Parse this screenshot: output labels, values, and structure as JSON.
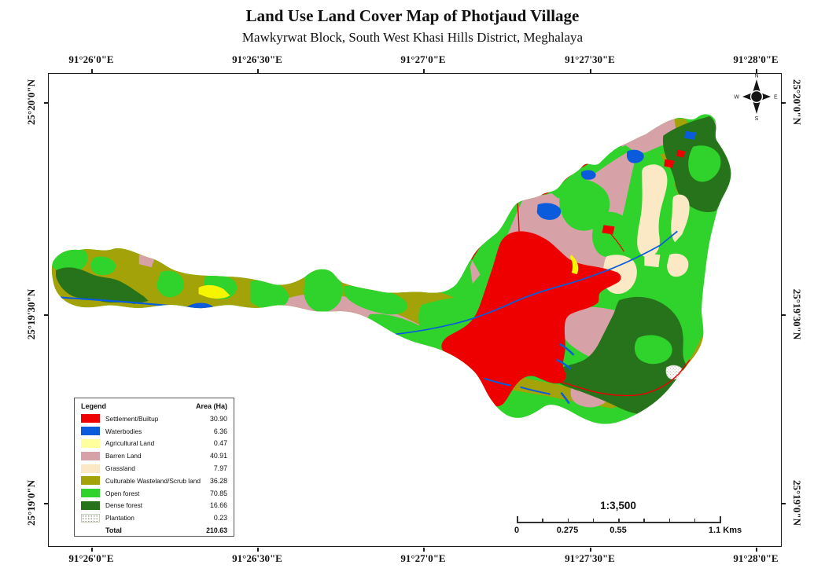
{
  "title": "Land Use Land Cover Map of Photjaud Village",
  "subtitle": "Mawkyrwat Block, South West Khasi Hills District, Meghalaya",
  "axis": {
    "lon_labels": [
      "91°26'0\"E",
      "91°26'30\"E",
      "91°27'0\"E",
      "91°27'30\"E",
      "91°28'0\"E"
    ],
    "lat_labels": [
      "25°20'0\"N",
      "25°19'30\"N",
      "25°19'0\"N"
    ]
  },
  "legend": {
    "title": "Legend",
    "area_header": "Area (Ha)",
    "rows": [
      {
        "label": "Settlement/Builtup",
        "value": "30.90",
        "color": "#EE0000",
        "pattern": "solid"
      },
      {
        "label": "Waterbodies",
        "value": "6.36",
        "color": "#0B5CDC",
        "pattern": "solid"
      },
      {
        "label": "Agricultural Land",
        "value": "0.47",
        "color": "#FFFF9E",
        "pattern": "solid"
      },
      {
        "label": "Barren Land",
        "value": "40.91",
        "color": "#D6A1A7",
        "pattern": "solid"
      },
      {
        "label": "Grassland",
        "value": "7.97",
        "color": "#FBE9C6",
        "pattern": "solid"
      },
      {
        "label": "Culturable Wasteland/Scrub land",
        "value": "36.28",
        "color": "#A3A309",
        "pattern": "solid"
      },
      {
        "label": "Open forest",
        "value": "70.85",
        "color": "#2FD32B",
        "pattern": "solid"
      },
      {
        "label": "Dense forest",
        "value": "16.66",
        "color": "#26731B",
        "pattern": "solid"
      },
      {
        "label": "Plantation",
        "value": "0.23",
        "color": "#FFFFFF",
        "pattern": "dots"
      }
    ],
    "total_label": "Total",
    "total_value": "210.63"
  },
  "scale": {
    "ratio": "1:3,500",
    "tick_labels": [
      "0",
      "0.275",
      "0.55",
      "1.1 Kms"
    ]
  },
  "compass": {
    "n": "N",
    "e": "E",
    "s": "S",
    "w": "W"
  },
  "map_colors": {
    "agricultural_bright": "#F7F400"
  }
}
